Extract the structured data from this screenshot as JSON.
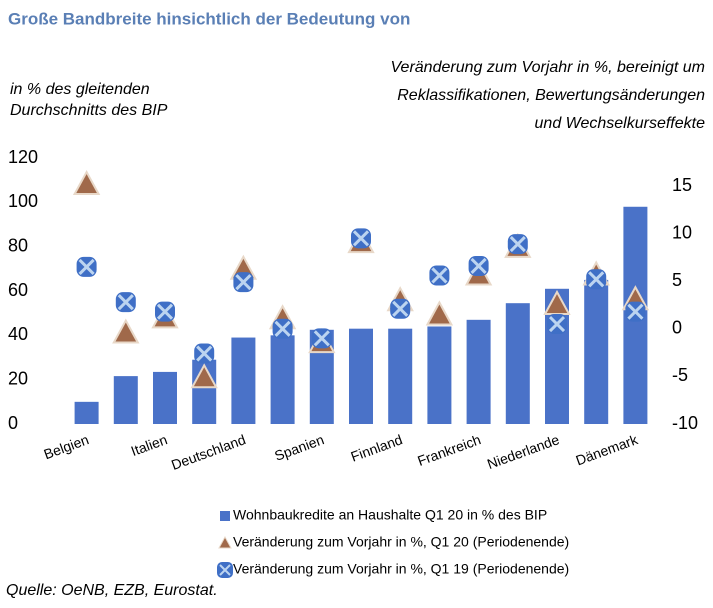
{
  "chart_data": {
    "type": "bar_scatter",
    "title": "Große Bandbreite hinsichtlich der Bedeutung von",
    "y_label": [
      "in % des gleitenden",
      "Durchschnitts des BIP"
    ],
    "y2_label": [
      "Veränderung zum Vorjahr in %, bereinigt um",
      "Reklassifikationen, Bewertungsänderungen",
      "und Wechselkurseffekte"
    ],
    "source": "Quelle: OeNB, EZB, Eurostat.",
    "categories": [
      "Belgien",
      null,
      "Italien",
      null,
      "Deutschland",
      null,
      "Spanien",
      null,
      "Finnland",
      null,
      "Frankreich",
      null,
      "Niederlande",
      null,
      "Dänemark"
    ],
    "series": [
      {
        "name": "Wohnbaukredite an Haushalte Q1 20 in % des BIP",
        "color": "#4a72c8",
        "marker": "bar",
        "values": [
          10,
          21.6,
          23.5,
          29,
          39,
          40,
          42.5,
          43,
          43,
          44,
          47,
          54.5,
          61,
          65,
          98
        ]
      },
      {
        "name": "Veränderung zum Vorjahr in %, Q1 20 (Periodenende)",
        "color": "#a0694a",
        "marker": "triangle",
        "axis": "y2",
        "values": [
          15.1,
          -0.5,
          1.1,
          -5.2,
          6.2,
          1.0,
          -1.5,
          9.0,
          2.9,
          1.4,
          5.6,
          8.5,
          2.5,
          5.6,
          3.0
        ]
      },
      {
        "name": "Veränderung zum Vorjahr in %, Q1 19 (Periodenende)",
        "color": "#3f6fc6",
        "marker": "cross",
        "axis": "y2",
        "values": [
          6.5,
          2.8,
          1.8,
          -2.6,
          4.9,
          0,
          -1.0,
          9.5,
          2.1,
          5.6,
          6.6,
          8.9,
          0.5,
          5.2,
          1.8
        ]
      }
    ],
    "ylim": [
      0,
      120
    ],
    "yticks": [
      0,
      20,
      40,
      60,
      80,
      100,
      120
    ],
    "y2lim": [
      -10,
      15
    ],
    "y2ticks": [
      -10,
      -5,
      0,
      5,
      10,
      15
    ]
  }
}
